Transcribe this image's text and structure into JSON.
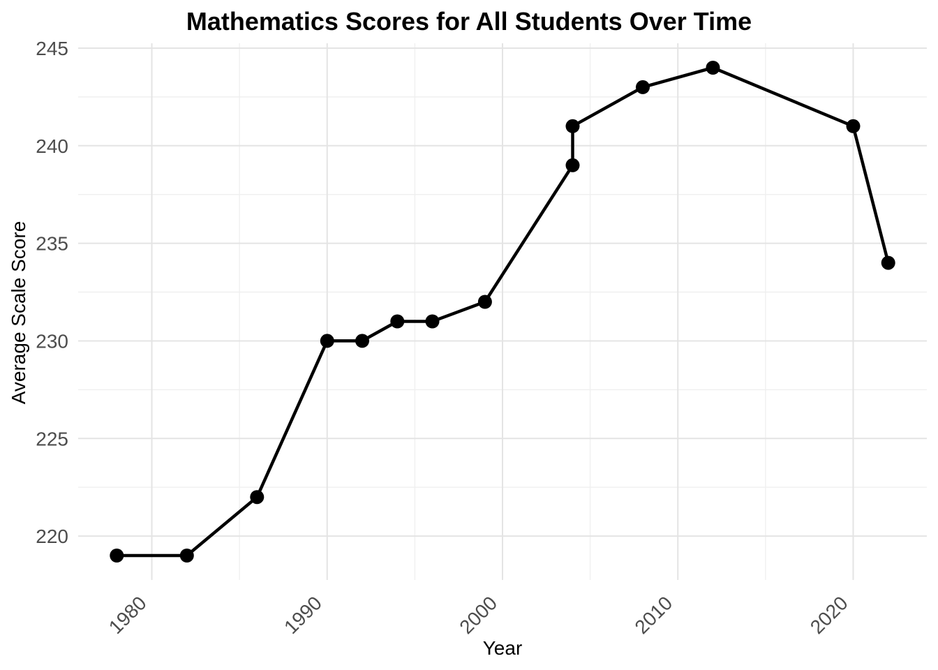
{
  "chart_data": {
    "type": "line",
    "title": "Mathematics Scores for All Students Over Time",
    "xlabel": "Year",
    "ylabel": "Average Scale Score",
    "x": [
      1978,
      1982,
      1986,
      1990,
      1992,
      1994,
      1996,
      1999,
      2004,
      2004,
      2008,
      2012,
      2020,
      2022
    ],
    "y": [
      219,
      219,
      222,
      230,
      230,
      231,
      231,
      232,
      239,
      241,
      243,
      244,
      241,
      234
    ],
    "xlim": [
      1975.8,
      2024.2
    ],
    "ylim": [
      217.75,
      245.25
    ],
    "x_ticks_major": {
      "values": [
        1980,
        1990,
        2000,
        2010,
        2020
      ],
      "labels": [
        "1980",
        "1990",
        "2000",
        "2010",
        "2020"
      ]
    },
    "x_ticks_minor": [
      1985,
      1995,
      2005,
      2015
    ],
    "y_ticks_major": {
      "values": [
        220,
        225,
        230,
        235,
        240,
        245
      ],
      "labels": [
        "220",
        "225",
        "230",
        "235",
        "240",
        "245"
      ]
    },
    "y_ticks_minor": [
      222.5,
      227.5,
      232.5,
      237.5,
      242.5
    ],
    "x_tick_label_rotation_deg": 45,
    "grid": true,
    "legend": "none",
    "style": {
      "line_color": "#000000",
      "point_color": "#000000",
      "line_width": 4.5,
      "point_radius": 10,
      "grid_major_color": "#E4E4E4",
      "grid_minor_color": "#F0F0F0",
      "tick_label_color": "#4D4D4D",
      "title_color": "#000000",
      "axis_title_color": "#000000",
      "background": "#FFFFFF"
    }
  }
}
